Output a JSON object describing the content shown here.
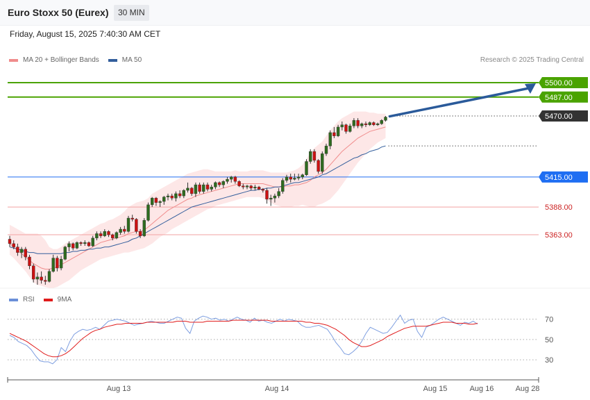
{
  "header": {
    "title": "Euro Stoxx 50 (Eurex)",
    "interval": "30 MIN"
  },
  "datetime": "Friday, August 15, 2025 7:40:30 AM CET",
  "legend": {
    "main": [
      {
        "label": "MA 20 + Bollinger Bands",
        "color": "#f08c8c"
      },
      {
        "label": "MA 50",
        "color": "#335e9c"
      }
    ],
    "rsi": [
      {
        "label": "RSI",
        "color": "#6a8fd8"
      },
      {
        "label": "9MA",
        "color": "#e01b1b"
      }
    ]
  },
  "credit": "Research © 2025 Trading Central",
  "colors": {
    "up": "#2e6b1f",
    "down": "#cc1111",
    "band": "#fde3e3",
    "ma20": "#f08c8c",
    "ma50": "#335e9c",
    "target": "#4aa300",
    "pivot": "#1f6ef2",
    "support": "#f2a3a3",
    "current": "#333333",
    "arrow": "#2a5a9a"
  },
  "chart_data": {
    "type": "candlestick",
    "y_range": [
      5318,
      5520
    ],
    "x_ticks": [
      "Aug 13",
      "Aug 14",
      "Aug 15",
      "Aug 16",
      "Aug 28"
    ],
    "levels": [
      {
        "value": 5500.0,
        "label": "5500.00",
        "kind": "target"
      },
      {
        "value": 5487.0,
        "label": "5487.00",
        "kind": "target"
      },
      {
        "value": 5470.0,
        "label": "5470.00",
        "kind": "current"
      },
      {
        "value": 5415.0,
        "label": "5415.00",
        "kind": "pivot"
      },
      {
        "value": 5388.0,
        "label": "5388.00",
        "kind": "support"
      },
      {
        "value": 5363.0,
        "label": "5363.00",
        "kind": "support"
      }
    ],
    "candles": [
      [
        5359,
        5362,
        5352,
        5355
      ],
      [
        5355,
        5358,
        5350,
        5352
      ],
      [
        5352,
        5355,
        5344,
        5347
      ],
      [
        5347,
        5352,
        5342,
        5350
      ],
      [
        5350,
        5352,
        5340,
        5343
      ],
      [
        5343,
        5345,
        5332,
        5335
      ],
      [
        5335,
        5337,
        5320,
        5323
      ],
      [
        5323,
        5329,
        5318,
        5325
      ],
      [
        5325,
        5330,
        5319,
        5322
      ],
      [
        5322,
        5326,
        5318,
        5321
      ],
      [
        5321,
        5332,
        5320,
        5330
      ],
      [
        5330,
        5345,
        5329,
        5342
      ],
      [
        5342,
        5344,
        5330,
        5333
      ],
      [
        5333,
        5344,
        5331,
        5341
      ],
      [
        5341,
        5353,
        5340,
        5352
      ],
      [
        5352,
        5357,
        5348,
        5355
      ],
      [
        5355,
        5356,
        5349,
        5351
      ],
      [
        5351,
        5357,
        5350,
        5356
      ],
      [
        5356,
        5357,
        5353,
        5355
      ],
      [
        5355,
        5358,
        5353,
        5356
      ],
      [
        5356,
        5357,
        5352,
        5353
      ],
      [
        5353,
        5362,
        5352,
        5360
      ],
      [
        5360,
        5366,
        5358,
        5364
      ],
      [
        5364,
        5366,
        5360,
        5362
      ],
      [
        5362,
        5368,
        5361,
        5366
      ],
      [
        5366,
        5367,
        5361,
        5363
      ],
      [
        5363,
        5364,
        5358,
        5360
      ],
      [
        5360,
        5366,
        5359,
        5365
      ],
      [
        5365,
        5370,
        5363,
        5368
      ],
      [
        5368,
        5371,
        5364,
        5366
      ],
      [
        5366,
        5380,
        5365,
        5378
      ],
      [
        5378,
        5381,
        5375,
        5377
      ],
      [
        5377,
        5378,
        5364,
        5366
      ],
      [
        5366,
        5368,
        5360,
        5362
      ],
      [
        5362,
        5378,
        5361,
        5376
      ],
      [
        5376,
        5392,
        5375,
        5390
      ],
      [
        5390,
        5397,
        5388,
        5396
      ],
      [
        5396,
        5397,
        5389,
        5392
      ],
      [
        5392,
        5394,
        5388,
        5393
      ],
      [
        5393,
        5398,
        5390,
        5397
      ],
      [
        5397,
        5400,
        5394,
        5398
      ],
      [
        5398,
        5400,
        5394,
        5396
      ],
      [
        5396,
        5402,
        5393,
        5400
      ],
      [
        5400,
        5403,
        5396,
        5398
      ],
      [
        5398,
        5404,
        5396,
        5403
      ],
      [
        5403,
        5410,
        5401,
        5405
      ],
      [
        5405,
        5406,
        5398,
        5400
      ],
      [
        5400,
        5410,
        5397,
        5408
      ],
      [
        5408,
        5410,
        5400,
        5402
      ],
      [
        5402,
        5410,
        5400,
        5408
      ],
      [
        5408,
        5410,
        5402,
        5404
      ],
      [
        5404,
        5408,
        5402,
        5406
      ],
      [
        5406,
        5411,
        5404,
        5410
      ],
      [
        5410,
        5411,
        5406,
        5408
      ],
      [
        5408,
        5412,
        5405,
        5411
      ],
      [
        5411,
        5415,
        5409,
        5413
      ],
      [
        5413,
        5416,
        5410,
        5415
      ],
      [
        5415,
        5416,
        5409,
        5411
      ],
      [
        5411,
        5412,
        5406,
        5407
      ],
      [
        5407,
        5409,
        5404,
        5406
      ],
      [
        5406,
        5408,
        5404,
        5407
      ],
      [
        5407,
        5408,
        5403,
        5405
      ],
      [
        5405,
        5408,
        5403,
        5406
      ],
      [
        5406,
        5407,
        5403,
        5404
      ],
      [
        5404,
        5405,
        5401,
        5403
      ],
      [
        5403,
        5405,
        5391,
        5395
      ],
      [
        5395,
        5399,
        5389,
        5396
      ],
      [
        5396,
        5400,
        5392,
        5398
      ],
      [
        5398,
        5405,
        5396,
        5402
      ],
      [
        5402,
        5414,
        5400,
        5412
      ],
      [
        5412,
        5417,
        5410,
        5415
      ],
      [
        5415,
        5418,
        5410,
        5413
      ],
      [
        5413,
        5418,
        5412,
        5414
      ],
      [
        5414,
        5418,
        5412,
        5415
      ],
      [
        5415,
        5418,
        5413,
        5417
      ],
      [
        5417,
        5431,
        5416,
        5429
      ],
      [
        5429,
        5440,
        5427,
        5438
      ],
      [
        5438,
        5440,
        5428,
        5430
      ],
      [
        5430,
        5431,
        5418,
        5420
      ],
      [
        5420,
        5438,
        5418,
        5436
      ],
      [
        5436,
        5445,
        5434,
        5443
      ],
      [
        5443,
        5457,
        5440,
        5455
      ],
      [
        5455,
        5460,
        5450,
        5452
      ],
      [
        5452,
        5462,
        5451,
        5460
      ],
      [
        5460,
        5465,
        5457,
        5462
      ],
      [
        5462,
        5463,
        5454,
        5456
      ],
      [
        5456,
        5463,
        5455,
        5461
      ],
      [
        5461,
        5468,
        5459,
        5466
      ],
      [
        5466,
        5468,
        5459,
        5461
      ],
      [
        5461,
        5464,
        5459,
        5463
      ],
      [
        5463,
        5465,
        5460,
        5462
      ],
      [
        5462,
        5465,
        5461,
        5464
      ],
      [
        5464,
        5465,
        5461,
        5462
      ],
      [
        5462,
        5464,
        5461,
        5463
      ],
      [
        5463,
        5467,
        5462,
        5466
      ],
      [
        5466,
        5470,
        5465,
        5469
      ]
    ],
    "ma20": [
      5355,
      5352,
      5349,
      5346,
      5343,
      5340,
      5337,
      5335,
      5333,
      5332,
      5332,
      5333,
      5334,
      5336,
      5338,
      5340,
      5342,
      5344,
      5346,
      5348,
      5350,
      5352,
      5354,
      5356,
      5357,
      5358,
      5359,
      5360,
      5361,
      5362,
      5364,
      5365,
      5366,
      5366,
      5367,
      5370,
      5373,
      5376,
      5379,
      5382,
      5385,
      5387,
      5389,
      5391,
      5393,
      5395,
      5396,
      5398,
      5399,
      5400,
      5401,
      5402,
      5403,
      5404,
      5405,
      5406,
      5407,
      5408,
      5409,
      5409,
      5409,
      5409,
      5409,
      5409,
      5409,
      5408,
      5407,
      5406,
      5406,
      5406,
      5407,
      5407,
      5408,
      5408,
      5409,
      5410,
      5412,
      5415,
      5417,
      5419,
      5422,
      5426,
      5430,
      5434,
      5438,
      5441,
      5444,
      5447,
      5450,
      5452,
      5454,
      5456,
      5457,
      5458,
      5459,
      5460
    ],
    "ma50": [
      5352,
      5351,
      5350,
      5349,
      5348,
      5347,
      5347,
      5346,
      5346,
      5346,
      5346,
      5346,
      5346,
      5346,
      5347,
      5347,
      5348,
      5348,
      5349,
      5349,
      5350,
      5350,
      5351,
      5351,
      5352,
      5352,
      5353,
      5354,
      5355,
      5356,
      5357,
      5359,
      5360,
      5362,
      5364,
      5366,
      5368,
      5370,
      5372,
      5374,
      5376,
      5378,
      5380,
      5382,
      5384,
      5386,
      5388,
      5389,
      5390,
      5391,
      5392,
      5393,
      5394,
      5395,
      5396,
      5397,
      5398,
      5399,
      5400,
      5401,
      5402,
      5403,
      5403,
      5404,
      5404,
      5405,
      5405,
      5406,
      5406,
      5407,
      5408,
      5409,
      5410,
      5410,
      5411,
      5412,
      5413,
      5414,
      5415,
      5417,
      5418,
      5420,
      5422,
      5424,
      5426,
      5428,
      5430,
      5432,
      5433,
      5435,
      5436,
      5438,
      5439,
      5440,
      5442,
      5443
    ],
    "band_upper": [
      5372,
      5370,
      5368,
      5366,
      5364,
      5364,
      5364,
      5364,
      5362,
      5358,
      5352,
      5350,
      5350,
      5352,
      5355,
      5357,
      5359,
      5361,
      5363,
      5365,
      5367,
      5369,
      5371,
      5373,
      5374,
      5376,
      5377,
      5379,
      5381,
      5384,
      5388,
      5390,
      5392,
      5393,
      5394,
      5396,
      5400,
      5402,
      5404,
      5406,
      5408,
      5410,
      5412,
      5414,
      5416,
      5418,
      5419,
      5420,
      5421,
      5422,
      5422,
      5421,
      5420,
      5420,
      5420,
      5420,
      5420,
      5421,
      5420,
      5420,
      5420,
      5421,
      5421,
      5421,
      5421,
      5420,
      5419,
      5419,
      5419,
      5419,
      5419,
      5420,
      5421,
      5423,
      5426,
      5431,
      5437,
      5441,
      5444,
      5447,
      5452,
      5457,
      5461,
      5465,
      5468,
      5470,
      5472,
      5474,
      5474,
      5474,
      5474,
      5473,
      5473,
      5472,
      5472,
      5472
    ],
    "band_lower": [
      5345,
      5342,
      5338,
      5334,
      5330,
      5325,
      5320,
      5318,
      5317,
      5316,
      5315,
      5315,
      5316,
      5318,
      5320,
      5322,
      5325,
      5328,
      5331,
      5333,
      5335,
      5337,
      5339,
      5341,
      5342,
      5343,
      5344,
      5345,
      5346,
      5347,
      5347,
      5348,
      5349,
      5350,
      5351,
      5353,
      5355,
      5358,
      5361,
      5363,
      5365,
      5368,
      5370,
      5372,
      5374,
      5376,
      5378,
      5380,
      5382,
      5384,
      5386,
      5387,
      5389,
      5390,
      5391,
      5392,
      5393,
      5394,
      5395,
      5396,
      5397,
      5397,
      5397,
      5397,
      5396,
      5394,
      5392,
      5390,
      5389,
      5388,
      5388,
      5388,
      5389,
      5389,
      5390,
      5389,
      5388,
      5388,
      5390,
      5391,
      5393,
      5395,
      5399,
      5403,
      5408,
      5413,
      5418,
      5423,
      5428,
      5432,
      5436,
      5440,
      5443,
      5446,
      5448,
      5450
    ],
    "rsi": {
      "ticks": [
        70,
        50,
        30
      ],
      "y_range": [
        15,
        80
      ],
      "rsi": [
        54,
        52,
        48,
        46,
        44,
        40,
        34,
        29,
        28,
        28,
        26,
        30,
        42,
        38,
        48,
        55,
        58,
        60,
        59,
        60,
        62,
        60,
        64,
        68,
        69,
        70,
        69,
        68,
        66,
        64,
        65,
        66,
        67,
        68,
        67,
        66,
        66,
        68,
        70,
        72,
        71,
        61,
        56,
        68,
        71,
        73,
        72,
        70,
        71,
        69,
        70,
        68,
        70,
        72,
        70,
        69,
        67,
        71,
        68,
        69,
        67,
        66,
        68,
        70,
        68,
        70,
        69,
        68,
        64,
        62,
        62,
        63,
        64,
        62,
        60,
        54,
        47,
        42,
        36,
        35,
        38,
        42,
        48,
        56,
        62,
        60,
        58,
        56,
        57,
        62,
        68,
        74,
        66,
        69,
        70,
        58,
        52,
        62,
        64,
        67,
        70,
        72,
        70,
        68,
        66,
        64,
        67,
        66,
        68,
        65
      ],
      "ma9": [
        56,
        54,
        52,
        50,
        48,
        45,
        42,
        39,
        36,
        34,
        33,
        33,
        34,
        36,
        39,
        43,
        47,
        51,
        54,
        57,
        59,
        60,
        62,
        63,
        64,
        65,
        65,
        66,
        66,
        66,
        66,
        66,
        67,
        67,
        67,
        67,
        67,
        67,
        67,
        68,
        68,
        68,
        67,
        67,
        67,
        67,
        68,
        68,
        68,
        68,
        68,
        68,
        69,
        69,
        69,
        69,
        69,
        69,
        69,
        69,
        69,
        68,
        68,
        68,
        68,
        68,
        68,
        68,
        68,
        67,
        67,
        66,
        66,
        65,
        64,
        62,
        60,
        57,
        54,
        50,
        47,
        45,
        43,
        43,
        44,
        46,
        48,
        50,
        53,
        55,
        57,
        59,
        61,
        62,
        63,
        63,
        63,
        63,
        64,
        65,
        66,
        67,
        67,
        67,
        66,
        66,
        66,
        65,
        65,
        66
      ]
    }
  }
}
